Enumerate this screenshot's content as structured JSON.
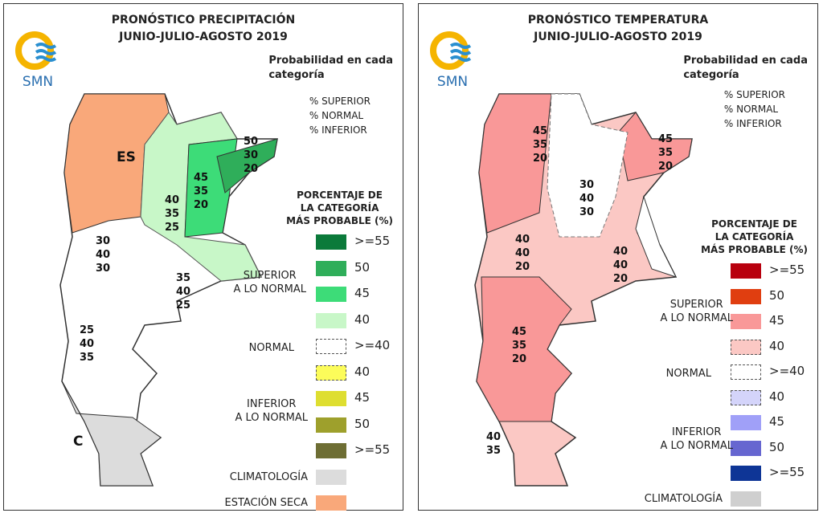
{
  "panels": [
    {
      "title_line1": "PRONÓSTICO PRECIPITACIÓN",
      "title_line2": "JUNIO-JULIO-AGOSTO 2019",
      "logo": "SMN",
      "prob_title_line1": "Probabilidad en cada",
      "prob_title_line2": "categoría",
      "categories": [
        "% SUPERIOR",
        "% NORMAL",
        "% INFERIOR"
      ],
      "legend_title": [
        "PORCENTAJE DE",
        "LA CATEGORÍA",
        "MÁS PROBABLE (%)"
      ],
      "groups": {
        "superior": "SUPERIOR\nA LO NORMAL",
        "normal": "NORMAL",
        "inferior": "INFERIOR\nA LO NORMAL"
      },
      "legend": [
        {
          "value": ">=55",
          "color": "#0b7a3a"
        },
        {
          "value": "50",
          "color": "#2fae5a"
        },
        {
          "value": "45",
          "color": "#3ddc78"
        },
        {
          "value": "40",
          "color": "#c8f7c8"
        },
        {
          "value": ">=40",
          "color": "#ffffff",
          "dashed": true
        },
        {
          "value": "40",
          "color": "#fcfc5a",
          "dashed": true
        },
        {
          "value": "45",
          "color": "#dede30"
        },
        {
          "value": "50",
          "color": "#9ea02c"
        },
        {
          "value": ">=55",
          "color": "#6e6e34"
        },
        {
          "value": "",
          "label": "CLIMATOLOGÍA",
          "color": "#dcdcdc"
        },
        {
          "value": "",
          "label": "ESTACIÓN SECA",
          "color": "#f9a87a"
        }
      ],
      "regions": [
        {
          "text": "ES"
        },
        {
          "text": "50\n30\n20"
        },
        {
          "text": "45\n35\n20"
        },
        {
          "text": "40\n35\n25"
        },
        {
          "text": "30\n40\n30"
        },
        {
          "text": "35\n40\n25"
        },
        {
          "text": "25\n40\n35"
        },
        {
          "text": "C"
        }
      ]
    },
    {
      "title_line1": "PRONÓSTICO TEMPERATURA",
      "title_line2": "JUNIO-JULIO-AGOSTO 2019",
      "logo": "SMN",
      "prob_title_line1": "Probabilidad en cada",
      "prob_title_line2": "categoría",
      "categories": [
        "% SUPERIOR",
        "% NORMAL",
        "% INFERIOR"
      ],
      "legend_title": [
        "PORCENTAJE DE",
        "LA CATEGORÍA",
        "MÁS PROBABLE (%)"
      ],
      "groups": {
        "superior": "SUPERIOR\nA LO NORMAL",
        "normal": "NORMAL",
        "inferior": "INFERIOR\nA LO NORMAL"
      },
      "legend": [
        {
          "value": ">=55",
          "color": "#b8000e"
        },
        {
          "value": "50",
          "color": "#e03e10"
        },
        {
          "value": "45",
          "color": "#f99898"
        },
        {
          "value": "40",
          "color": "#fbc8c4",
          "dashed": true
        },
        {
          "value": ">=40",
          "color": "#ffffff",
          "dashed": true
        },
        {
          "value": "40",
          "color": "#d4d4fa",
          "dashed": true
        },
        {
          "value": "45",
          "color": "#a0a0f8"
        },
        {
          "value": "50",
          "color": "#6666d0"
        },
        {
          "value": ">=55",
          "color": "#0e3596"
        },
        {
          "value": "",
          "label": "CLIMATOLOGÍA",
          "color": "#cfcfcf"
        }
      ],
      "regions": [
        {
          "text": "45\n35\n20"
        },
        {
          "text": "45\n35\n20"
        },
        {
          "text": "30\n40\n30"
        },
        {
          "text": "40\n40\n20"
        },
        {
          "text": "40\n40\n20"
        },
        {
          "text": "45\n35\n20"
        },
        {
          "text": "40\n35"
        }
      ]
    }
  ]
}
